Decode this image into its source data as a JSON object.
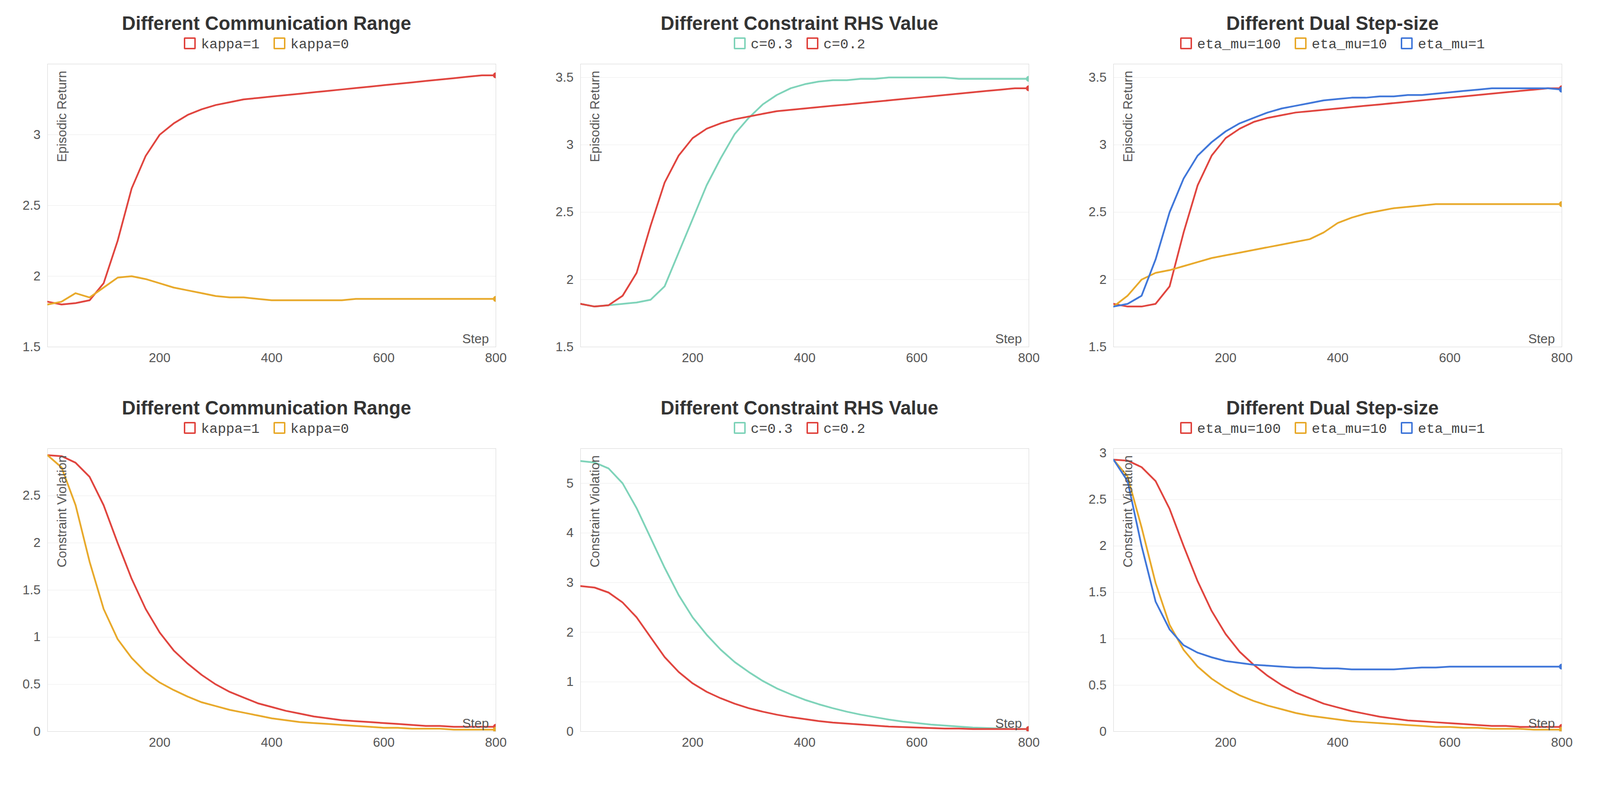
{
  "chart_data": [
    {
      "type": "line",
      "title": "Different Communication Range",
      "xlabel": "Step",
      "ylabel": "Episodic Return",
      "x": [
        0,
        25,
        50,
        75,
        100,
        125,
        150,
        175,
        200,
        225,
        250,
        275,
        300,
        325,
        350,
        375,
        400,
        425,
        450,
        475,
        500,
        525,
        550,
        575,
        600,
        625,
        650,
        675,
        700,
        725,
        750,
        775,
        800
      ],
      "xlim": [
        0,
        800
      ],
      "xticks": [
        200,
        400,
        600,
        800
      ],
      "ylim": [
        1.5,
        3.5
      ],
      "yticks": [
        1.5,
        2,
        2.5,
        3
      ],
      "grid": true,
      "series": [
        {
          "name": "kappa=1",
          "color": "#e0443e",
          "values": [
            1.82,
            1.8,
            1.81,
            1.83,
            1.95,
            2.25,
            2.62,
            2.85,
            3.0,
            3.08,
            3.14,
            3.18,
            3.21,
            3.23,
            3.25,
            3.26,
            3.27,
            3.28,
            3.29,
            3.3,
            3.31,
            3.32,
            3.33,
            3.34,
            3.35,
            3.36,
            3.37,
            3.38,
            3.39,
            3.4,
            3.41,
            3.42,
            3.42
          ]
        },
        {
          "name": "kappa=0",
          "color": "#e8a92a",
          "values": [
            1.8,
            1.82,
            1.88,
            1.85,
            1.92,
            1.99,
            2.0,
            1.98,
            1.95,
            1.92,
            1.9,
            1.88,
            1.86,
            1.85,
            1.85,
            1.84,
            1.83,
            1.83,
            1.83,
            1.83,
            1.83,
            1.83,
            1.84,
            1.84,
            1.84,
            1.84,
            1.84,
            1.84,
            1.84,
            1.84,
            1.84,
            1.84,
            1.84
          ]
        }
      ]
    },
    {
      "type": "line",
      "title": "Different Constraint RHS Value",
      "xlabel": "Step",
      "ylabel": "Episodic Return",
      "x": [
        0,
        25,
        50,
        75,
        100,
        125,
        150,
        175,
        200,
        225,
        250,
        275,
        300,
        325,
        350,
        375,
        400,
        425,
        450,
        475,
        500,
        525,
        550,
        575,
        600,
        625,
        650,
        675,
        700,
        725,
        750,
        775,
        800
      ],
      "xlim": [
        0,
        800
      ],
      "xticks": [
        200,
        400,
        600,
        800
      ],
      "ylim": [
        1.5,
        3.6
      ],
      "yticks": [
        1.5,
        2,
        2.5,
        3,
        3.5
      ],
      "grid": true,
      "series": [
        {
          "name": "c=0.3",
          "color": "#7ed3b9",
          "values": [
            1.82,
            1.8,
            1.81,
            1.82,
            1.83,
            1.85,
            1.95,
            2.2,
            2.45,
            2.7,
            2.9,
            3.08,
            3.2,
            3.3,
            3.37,
            3.42,
            3.45,
            3.47,
            3.48,
            3.48,
            3.49,
            3.49,
            3.5,
            3.5,
            3.5,
            3.5,
            3.5,
            3.49,
            3.49,
            3.49,
            3.49,
            3.49,
            3.49
          ]
        },
        {
          "name": "c=0.2",
          "color": "#e0443e",
          "values": [
            1.82,
            1.8,
            1.81,
            1.88,
            2.05,
            2.4,
            2.72,
            2.92,
            3.05,
            3.12,
            3.16,
            3.19,
            3.21,
            3.23,
            3.25,
            3.26,
            3.27,
            3.28,
            3.29,
            3.3,
            3.31,
            3.32,
            3.33,
            3.34,
            3.35,
            3.36,
            3.37,
            3.38,
            3.39,
            3.4,
            3.41,
            3.42,
            3.42
          ]
        }
      ]
    },
    {
      "type": "line",
      "title": "Different Dual Step-size",
      "xlabel": "Step",
      "ylabel": "Episodic Return",
      "x": [
        0,
        25,
        50,
        75,
        100,
        125,
        150,
        175,
        200,
        225,
        250,
        275,
        300,
        325,
        350,
        375,
        400,
        425,
        450,
        475,
        500,
        525,
        550,
        575,
        600,
        625,
        650,
        675,
        700,
        725,
        750,
        775,
        800
      ],
      "xlim": [
        0,
        800
      ],
      "xticks": [
        200,
        400,
        600,
        800
      ],
      "ylim": [
        1.5,
        3.6
      ],
      "yticks": [
        1.5,
        2,
        2.5,
        3,
        3.5
      ],
      "grid": true,
      "series": [
        {
          "name": "eta_mu=100",
          "color": "#e0443e",
          "values": [
            1.82,
            1.8,
            1.8,
            1.82,
            1.95,
            2.35,
            2.7,
            2.92,
            3.05,
            3.12,
            3.17,
            3.2,
            3.22,
            3.24,
            3.25,
            3.26,
            3.27,
            3.28,
            3.29,
            3.3,
            3.31,
            3.32,
            3.33,
            3.34,
            3.35,
            3.36,
            3.37,
            3.38,
            3.39,
            3.4,
            3.41,
            3.42,
            3.42
          ]
        },
        {
          "name": "eta_mu=10",
          "color": "#e8a92a",
          "values": [
            1.8,
            1.88,
            2.0,
            2.05,
            2.07,
            2.1,
            2.13,
            2.16,
            2.18,
            2.2,
            2.22,
            2.24,
            2.26,
            2.28,
            2.3,
            2.35,
            2.42,
            2.46,
            2.49,
            2.51,
            2.53,
            2.54,
            2.55,
            2.56,
            2.56,
            2.56,
            2.56,
            2.56,
            2.56,
            2.56,
            2.56,
            2.56,
            2.56
          ]
        },
        {
          "name": "eta_mu=1",
          "color": "#3f76d9",
          "values": [
            1.8,
            1.82,
            1.88,
            2.15,
            2.5,
            2.75,
            2.92,
            3.02,
            3.1,
            3.16,
            3.2,
            3.24,
            3.27,
            3.29,
            3.31,
            3.33,
            3.34,
            3.35,
            3.35,
            3.36,
            3.36,
            3.37,
            3.37,
            3.38,
            3.39,
            3.4,
            3.41,
            3.42,
            3.42,
            3.42,
            3.42,
            3.42,
            3.41
          ]
        }
      ]
    },
    {
      "type": "line",
      "title": "Different Communication Range",
      "xlabel": "Step",
      "ylabel": "Constraint Violation",
      "x": [
        0,
        25,
        50,
        75,
        100,
        125,
        150,
        175,
        200,
        225,
        250,
        275,
        300,
        325,
        350,
        375,
        400,
        425,
        450,
        475,
        500,
        525,
        550,
        575,
        600,
        625,
        650,
        675,
        700,
        725,
        750,
        775,
        800
      ],
      "xlim": [
        0,
        800
      ],
      "xticks": [
        200,
        400,
        600,
        800
      ],
      "ylim": [
        0,
        3
      ],
      "yticks": [
        0,
        0.5,
        1,
        1.5,
        2,
        2.5
      ],
      "grid": true,
      "series": [
        {
          "name": "kappa=1",
          "color": "#e0443e",
          "values": [
            2.93,
            2.92,
            2.85,
            2.7,
            2.4,
            2.0,
            1.62,
            1.3,
            1.05,
            0.86,
            0.72,
            0.6,
            0.5,
            0.42,
            0.36,
            0.3,
            0.26,
            0.22,
            0.19,
            0.16,
            0.14,
            0.12,
            0.11,
            0.1,
            0.09,
            0.08,
            0.07,
            0.06,
            0.06,
            0.05,
            0.05,
            0.05,
            0.05
          ]
        },
        {
          "name": "kappa=0",
          "color": "#e8a92a",
          "values": [
            2.93,
            2.8,
            2.4,
            1.8,
            1.3,
            0.98,
            0.78,
            0.63,
            0.52,
            0.44,
            0.37,
            0.31,
            0.27,
            0.23,
            0.2,
            0.17,
            0.14,
            0.12,
            0.1,
            0.09,
            0.08,
            0.07,
            0.06,
            0.05,
            0.04,
            0.04,
            0.03,
            0.03,
            0.03,
            0.02,
            0.02,
            0.02,
            0.02
          ]
        }
      ]
    },
    {
      "type": "line",
      "title": "Different Constraint RHS Value",
      "xlabel": "Step",
      "ylabel": "Constraint Violation",
      "x": [
        0,
        25,
        50,
        75,
        100,
        125,
        150,
        175,
        200,
        225,
        250,
        275,
        300,
        325,
        350,
        375,
        400,
        425,
        450,
        475,
        500,
        525,
        550,
        575,
        600,
        625,
        650,
        675,
        700,
        725,
        750,
        775,
        800
      ],
      "xlim": [
        0,
        800
      ],
      "xticks": [
        200,
        400,
        600,
        800
      ],
      "ylim": [
        0,
        5.7
      ],
      "yticks": [
        0,
        1,
        2,
        3,
        4,
        5
      ],
      "grid": true,
      "series": [
        {
          "name": "c=0.3",
          "color": "#7ed3b9",
          "values": [
            5.45,
            5.42,
            5.3,
            5.0,
            4.5,
            3.9,
            3.3,
            2.75,
            2.3,
            1.95,
            1.65,
            1.4,
            1.2,
            1.02,
            0.87,
            0.75,
            0.64,
            0.55,
            0.47,
            0.4,
            0.34,
            0.29,
            0.24,
            0.2,
            0.17,
            0.14,
            0.12,
            0.1,
            0.08,
            0.07,
            0.06,
            0.05,
            0.05
          ]
        },
        {
          "name": "c=0.2",
          "color": "#e0443e",
          "values": [
            2.93,
            2.9,
            2.8,
            2.6,
            2.3,
            1.9,
            1.5,
            1.2,
            0.97,
            0.8,
            0.67,
            0.56,
            0.47,
            0.4,
            0.34,
            0.29,
            0.25,
            0.21,
            0.18,
            0.16,
            0.14,
            0.12,
            0.1,
            0.09,
            0.08,
            0.07,
            0.06,
            0.06,
            0.05,
            0.05,
            0.05,
            0.05,
            0.05
          ]
        }
      ]
    },
    {
      "type": "line",
      "title": "Different Dual Step-size",
      "xlabel": "Step",
      "ylabel": "Constraint Violation",
      "x": [
        0,
        25,
        50,
        75,
        100,
        125,
        150,
        175,
        200,
        225,
        250,
        275,
        300,
        325,
        350,
        375,
        400,
        425,
        450,
        475,
        500,
        525,
        550,
        575,
        600,
        625,
        650,
        675,
        700,
        725,
        750,
        775,
        800
      ],
      "xlim": [
        0,
        800
      ],
      "xticks": [
        200,
        400,
        600,
        800
      ],
      "ylim": [
        0,
        3.05
      ],
      "yticks": [
        0,
        0.5,
        1,
        1.5,
        2,
        2.5,
        3
      ],
      "grid": true,
      "series": [
        {
          "name": "eta_mu=100",
          "color": "#e0443e",
          "values": [
            2.93,
            2.92,
            2.85,
            2.7,
            2.4,
            2.0,
            1.62,
            1.3,
            1.05,
            0.86,
            0.72,
            0.6,
            0.5,
            0.42,
            0.36,
            0.3,
            0.26,
            0.22,
            0.19,
            0.16,
            0.14,
            0.12,
            0.11,
            0.1,
            0.09,
            0.08,
            0.07,
            0.06,
            0.06,
            0.05,
            0.05,
            0.05,
            0.05
          ]
        },
        {
          "name": "eta_mu=10",
          "color": "#e8a92a",
          "values": [
            2.93,
            2.75,
            2.2,
            1.6,
            1.15,
            0.88,
            0.7,
            0.57,
            0.47,
            0.39,
            0.33,
            0.28,
            0.24,
            0.2,
            0.17,
            0.15,
            0.13,
            0.11,
            0.1,
            0.09,
            0.08,
            0.07,
            0.06,
            0.05,
            0.05,
            0.04,
            0.04,
            0.03,
            0.03,
            0.03,
            0.02,
            0.02,
            0.02
          ]
        },
        {
          "name": "eta_mu=1",
          "color": "#3f76d9",
          "values": [
            2.93,
            2.7,
            2.0,
            1.4,
            1.1,
            0.93,
            0.85,
            0.8,
            0.76,
            0.74,
            0.72,
            0.71,
            0.7,
            0.69,
            0.69,
            0.68,
            0.68,
            0.67,
            0.67,
            0.67,
            0.67,
            0.68,
            0.69,
            0.69,
            0.7,
            0.7,
            0.7,
            0.7,
            0.7,
            0.7,
            0.7,
            0.7,
            0.7
          ]
        }
      ]
    }
  ]
}
